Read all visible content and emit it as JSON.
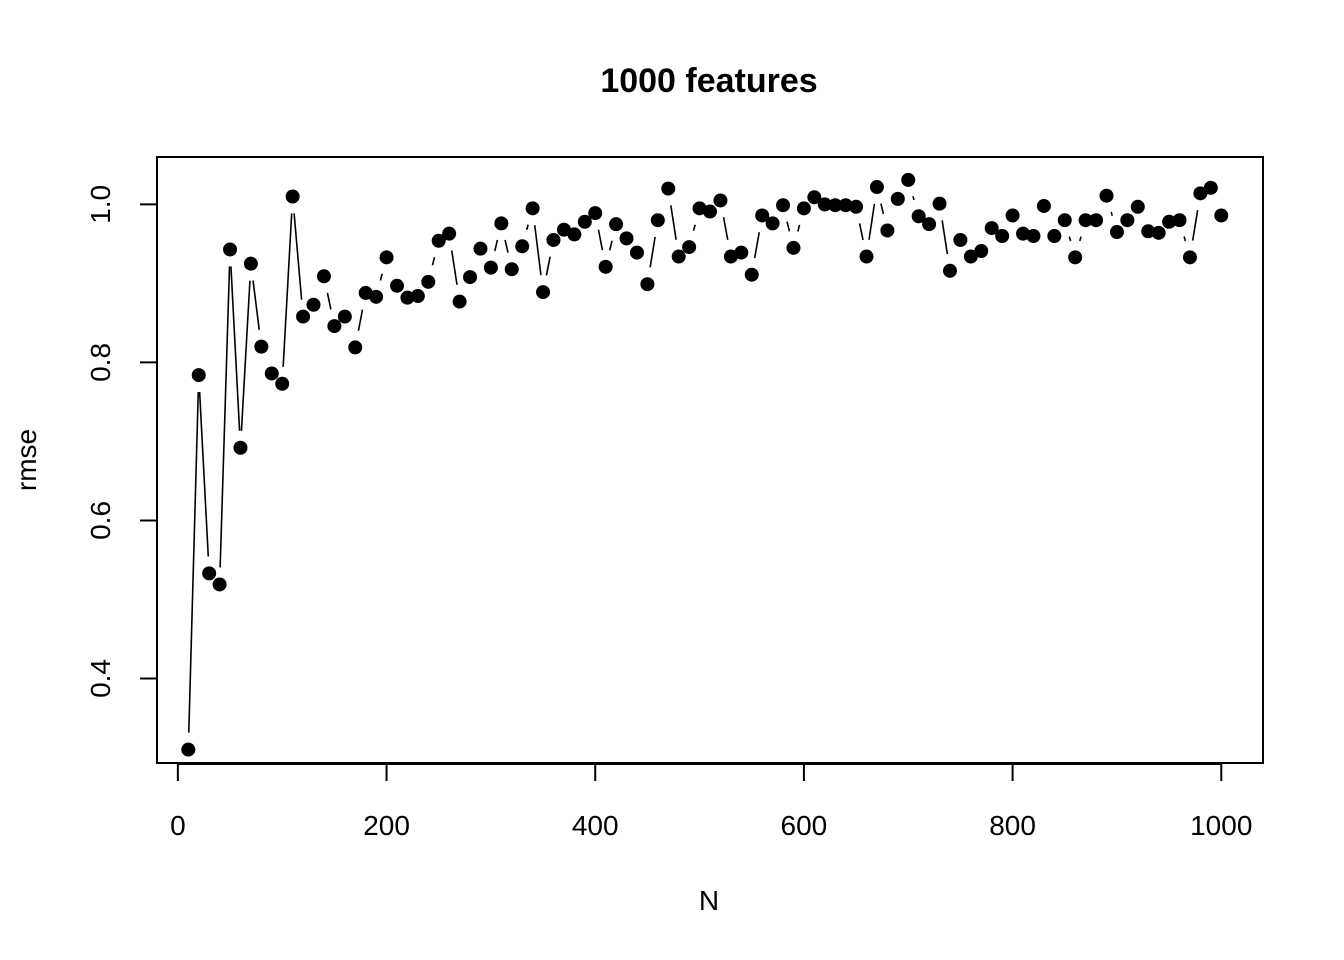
{
  "chart_data": {
    "type": "line",
    "title": "1000 features",
    "xlabel": "N",
    "ylabel": "rmse",
    "xlim": [
      -20,
      1040
    ],
    "ylim": [
      0.293,
      1.06
    ],
    "xticks": [
      0,
      200,
      400,
      600,
      800,
      1000
    ],
    "xtick_labels": [
      "0",
      "200",
      "400",
      "600",
      "800",
      "1000"
    ],
    "yticks": [
      0.4,
      0.6,
      0.8,
      1.0
    ],
    "ytick_labels": [
      "0.4",
      "0.6",
      "0.8",
      "1.0"
    ],
    "grid": false,
    "legend": "none",
    "line_style": "b",
    "point_shape": "filled-circle",
    "color": "#000000",
    "x": [
      10,
      20,
      30,
      40,
      50,
      60,
      70,
      80,
      90,
      100,
      110,
      120,
      130,
      140,
      150,
      160,
      170,
      180,
      190,
      200,
      210,
      220,
      230,
      240,
      250,
      260,
      270,
      280,
      290,
      300,
      310,
      320,
      330,
      340,
      350,
      360,
      370,
      380,
      390,
      400,
      410,
      420,
      430,
      440,
      450,
      460,
      470,
      480,
      490,
      500,
      510,
      520,
      530,
      540,
      550,
      560,
      570,
      580,
      590,
      600,
      610,
      620,
      630,
      640,
      650,
      660,
      670,
      680,
      690,
      700,
      710,
      720,
      730,
      740,
      750,
      760,
      770,
      780,
      790,
      800,
      810,
      820,
      830,
      840,
      850,
      860,
      870,
      880,
      890,
      900,
      910,
      920,
      930,
      940,
      950,
      960,
      970,
      980,
      990,
      1000
    ],
    "y": [
      0.31,
      0.784,
      0.533,
      0.519,
      0.943,
      0.692,
      0.925,
      0.82,
      0.786,
      0.773,
      1.01,
      0.858,
      0.873,
      0.909,
      0.846,
      0.858,
      0.819,
      0.888,
      0.883,
      0.933,
      0.897,
      0.882,
      0.884,
      0.902,
      0.954,
      0.963,
      0.877,
      0.908,
      0.944,
      0.92,
      0.976,
      0.918,
      0.947,
      0.995,
      0.889,
      0.955,
      0.968,
      0.962,
      0.978,
      0.989,
      0.921,
      0.975,
      0.957,
      0.939,
      0.899,
      0.98,
      1.02,
      0.934,
      0.946,
      0.995,
      0.991,
      1.005,
      0.934,
      0.939,
      0.911,
      0.986,
      0.976,
      0.999,
      0.945,
      0.995,
      1.009,
      1.0,
      0.999,
      0.999,
      0.997,
      0.934,
      1.022,
      0.967,
      1.007,
      1.031,
      0.985,
      0.975,
      1.001,
      0.916,
      0.955,
      0.934,
      0.941,
      0.97,
      0.96,
      0.986,
      0.963,
      0.96,
      0.998,
      0.96,
      0.98,
      0.933,
      0.98,
      0.98,
      1.011,
      0.965,
      0.98,
      0.997,
      0.966,
      0.964,
      0.978,
      0.98,
      0.933,
      1.014,
      1.021,
      0.986
    ]
  }
}
